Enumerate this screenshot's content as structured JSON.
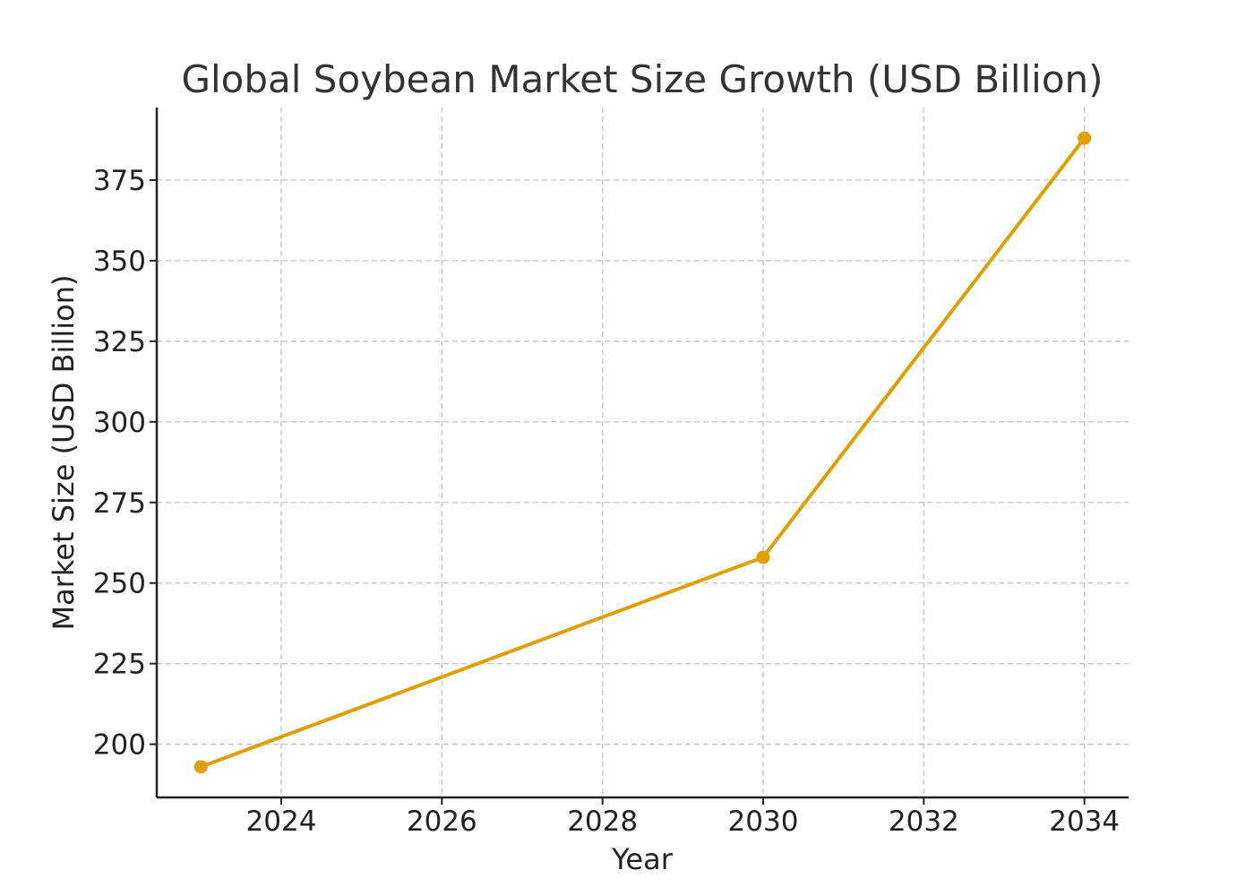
{
  "chart_data": {
    "type": "line",
    "title": "Global Soybean Market Size Growth (USD Billion)",
    "xlabel": "Year",
    "ylabel": "Market Size (USD Billion)",
    "x": [
      2023,
      2030,
      2034
    ],
    "series": [
      {
        "values": [
          193,
          258,
          388
        ],
        "color": "#E09F00"
      }
    ],
    "xlim": [
      2022.45,
      2034.55
    ],
    "ylim": [
      183.5,
      397.5
    ],
    "x_ticks": [
      2024,
      2026,
      2028,
      2030,
      2032,
      2034
    ],
    "y_ticks": [
      200,
      225,
      250,
      275,
      300,
      325,
      350,
      375
    ],
    "grid": true,
    "colors": {
      "line": "#E09F00",
      "grid": "#C7C7C7",
      "axis": "#222222",
      "title": "#333333"
    }
  }
}
